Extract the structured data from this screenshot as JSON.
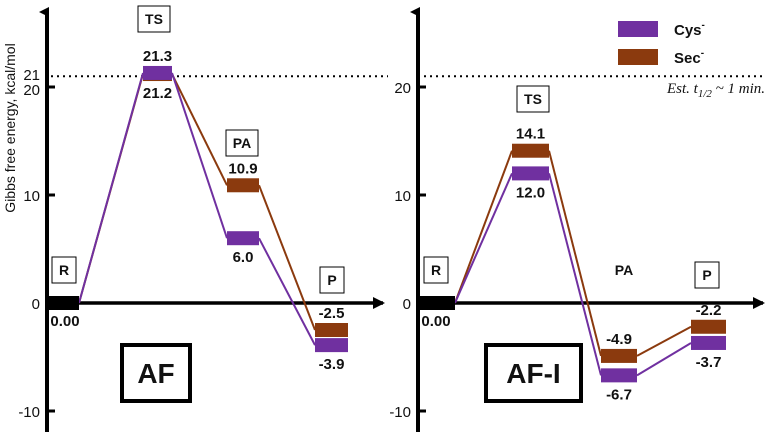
{
  "chart_data": [
    {
      "type": "line",
      "panel_label": "AF",
      "ylabel": "Gibbs free energy, kcal/mol",
      "yticks": [
        "21",
        "20",
        "10",
        "0",
        "-10"
      ],
      "ylim": [
        -12,
        24
      ],
      "reference_line": 21,
      "states": [
        "R",
        "TS",
        "PA",
        "P"
      ],
      "series": [
        {
          "name": "Cys⁻",
          "color": "#7030A0",
          "values": [
            0.0,
            21.3,
            6.0,
            -3.9
          ]
        },
        {
          "name": "Sec⁻",
          "color": "#8B3A0E",
          "values": [
            0.0,
            21.2,
            10.9,
            -2.5
          ]
        }
      ],
      "labels": {
        "R": [
          "0.00"
        ],
        "TS": [
          "21.3",
          "21.2"
        ],
        "PA": [
          "10.9",
          "6.0"
        ],
        "P": [
          "-2.5",
          "-3.9"
        ]
      }
    },
    {
      "type": "line",
      "panel_label": "AF-I",
      "yticks": [
        "20",
        "10",
        "0",
        "-10"
      ],
      "ylim": [
        -12,
        24
      ],
      "reference_line": 21,
      "annotation": "Est. t1/2 ~ 1 min.",
      "states": [
        "R",
        "TS",
        "PA",
        "P"
      ],
      "series": [
        {
          "name": "Cys⁻",
          "color": "#7030A0",
          "values": [
            0.0,
            12.0,
            -6.7,
            -3.7
          ]
        },
        {
          "name": "Sec⁻",
          "color": "#8B3A0E",
          "values": [
            0.0,
            14.1,
            -4.9,
            -2.2
          ]
        }
      ],
      "labels": {
        "R": [
          "0.00"
        ],
        "TS": [
          "14.1",
          "12.0"
        ],
        "PA": [
          "-4.9",
          "-6.7"
        ],
        "P": [
          "-2.2",
          "-3.7"
        ]
      }
    }
  ],
  "legend": [
    {
      "name": "Cys",
      "sup": "-",
      "color": "#7030A0"
    },
    {
      "name": "Sec",
      "sup": "-",
      "color": "#8B3A0E"
    }
  ],
  "colors": {
    "cys": "#7030A0",
    "sec": "#8B3A0E",
    "axis": "#000000"
  }
}
